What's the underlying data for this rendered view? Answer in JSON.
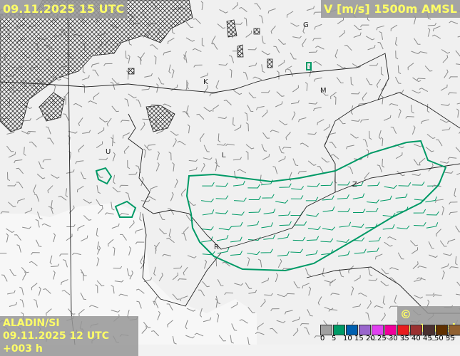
{
  "header": {
    "valid_time": "09.11.2025 15 UTC",
    "parameter": "V [m/s] 1500m AMSL"
  },
  "footer": {
    "model": "ALADIN/SI",
    "run": "09.11.2025 12 UTC +003 h",
    "copyright": "© meteo.si"
  },
  "legend": {
    "unit": "m/s",
    "ticks": [
      "0",
      "5",
      "10",
      "15",
      "20",
      "25",
      "30",
      "35",
      "40",
      "45",
      "50",
      "55"
    ],
    "colors": [
      "#a0a0a0",
      "#009a66",
      "#0060b0",
      "#9966cc",
      "#e040f0",
      "#f0009a",
      "#e81c1c",
      "#9a3030",
      "#4a3030",
      "#603000",
      "#906030",
      "#b89a60"
    ]
  },
  "contour_color": "#009a66",
  "cities": [
    {
      "label": "G"
    },
    {
      "label": "K"
    },
    {
      "label": "M"
    },
    {
      "label": "L"
    },
    {
      "label": "U"
    },
    {
      "label": "Z"
    },
    {
      "label": "R"
    }
  ]
}
